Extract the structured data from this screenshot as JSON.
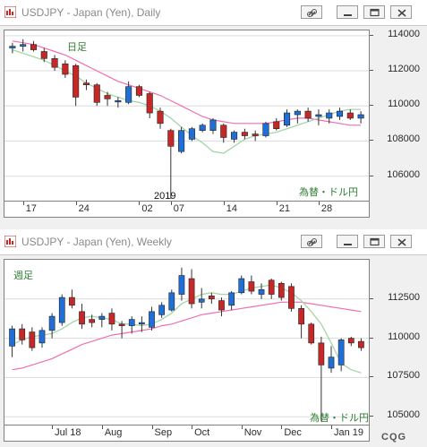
{
  "daily_window": {
    "title": "USDJPY - Japan (Yen), Daily",
    "period_label": "日足",
    "source_label": "為替・ドル円",
    "year_marker": "2019",
    "buttons": [
      "link-icon",
      "minimize-icon",
      "restore-icon",
      "close-icon"
    ]
  },
  "weekly_window": {
    "title": "USDJPY - Japan (Yen), Weekly",
    "period_label": "週足",
    "source_label": "為替・ドル円",
    "buttons": [
      "link-icon",
      "minimize-icon",
      "restore-icon",
      "close-icon"
    ]
  },
  "footer": {
    "brand": "CQG"
  },
  "colors": {
    "up": "#1f6fd6",
    "down": "#c62828",
    "ma_short": "#a5d6a7",
    "ma_long": "#f06fb0",
    "period_text": "#2e7d32"
  },
  "chart_data": [
    {
      "type": "candlestick",
      "title": "USDJPY - Japan (Yen), Daily",
      "y_ticks": [
        "114000",
        "112000",
        "110000",
        "108000",
        "106000"
      ],
      "ylim": [
        104600,
        114300
      ],
      "x_labels": [
        "17",
        "24",
        "02",
        "07",
        "14",
        "21",
        "28"
      ],
      "x_label_index": [
        1,
        6,
        12,
        15,
        20,
        25,
        29
      ],
      "candles": [
        {
          "o": 113300,
          "h": 113600,
          "l": 113000,
          "c": 113400
        },
        {
          "o": 113400,
          "h": 113800,
          "l": 113100,
          "c": 113500
        },
        {
          "o": 113500,
          "h": 113700,
          "l": 113100,
          "c": 113200
        },
        {
          "o": 113100,
          "h": 113300,
          "l": 112500,
          "c": 112700
        },
        {
          "o": 112700,
          "h": 112900,
          "l": 112000,
          "c": 112200
        },
        {
          "o": 112400,
          "h": 112600,
          "l": 111600,
          "c": 111800
        },
        {
          "o": 112300,
          "h": 112400,
          "l": 110000,
          "c": 110500
        },
        {
          "o": 111300,
          "h": 111500,
          "l": 110900,
          "c": 111200
        },
        {
          "o": 111200,
          "h": 111300,
          "l": 110000,
          "c": 110200
        },
        {
          "o": 110600,
          "h": 110800,
          "l": 110000,
          "c": 110400
        },
        {
          "o": 110300,
          "h": 110500,
          "l": 109900,
          "c": 110300
        },
        {
          "o": 110200,
          "h": 111400,
          "l": 110100,
          "c": 111100
        },
        {
          "o": 111100,
          "h": 111200,
          "l": 110500,
          "c": 110600
        },
        {
          "o": 110700,
          "h": 110800,
          "l": 109300,
          "c": 109600
        },
        {
          "o": 109700,
          "h": 109900,
          "l": 108700,
          "c": 109000
        },
        {
          "o": 108600,
          "h": 108700,
          "l": 104700,
          "c": 107700
        },
        {
          "o": 107400,
          "h": 108800,
          "l": 107300,
          "c": 108600
        },
        {
          "o": 108100,
          "h": 108800,
          "l": 108000,
          "c": 108700
        },
        {
          "o": 108600,
          "h": 109000,
          "l": 108500,
          "c": 108900
        },
        {
          "o": 108600,
          "h": 109300,
          "l": 108400,
          "c": 109200
        },
        {
          "o": 108900,
          "h": 109000,
          "l": 107900,
          "c": 108200
        },
        {
          "o": 108100,
          "h": 108600,
          "l": 107900,
          "c": 108500
        },
        {
          "o": 108500,
          "h": 108700,
          "l": 108100,
          "c": 108300
        },
        {
          "o": 108400,
          "h": 108600,
          "l": 108000,
          "c": 108300
        },
        {
          "o": 108300,
          "h": 109100,
          "l": 108200,
          "c": 109000
        },
        {
          "o": 109100,
          "h": 109300,
          "l": 108600,
          "c": 108700
        },
        {
          "o": 108900,
          "h": 109800,
          "l": 108800,
          "c": 109600
        },
        {
          "o": 109500,
          "h": 109800,
          "l": 109000,
          "c": 109700
        },
        {
          "o": 109700,
          "h": 109900,
          "l": 109100,
          "c": 109300
        },
        {
          "o": 109400,
          "h": 109800,
          "l": 108900,
          "c": 109500
        },
        {
          "o": 109300,
          "h": 109800,
          "l": 109000,
          "c": 109600
        },
        {
          "o": 109400,
          "h": 109900,
          "l": 109200,
          "c": 109700
        },
        {
          "o": 109600,
          "h": 109800,
          "l": 109200,
          "c": 109300
        },
        {
          "o": 109300,
          "h": 109700,
          "l": 109000,
          "c": 109500
        }
      ],
      "ma_short": [
        113200,
        113000,
        112800,
        112600,
        112300,
        112000,
        111700,
        111300,
        111000,
        110700,
        110500,
        110300,
        110200,
        110000,
        109700,
        109300,
        108800,
        108300,
        107900,
        107400,
        107300,
        107700,
        108100,
        108300,
        108400,
        108500,
        108700,
        108900,
        109100,
        109300,
        109500,
        109700,
        109800,
        109800
      ],
      "ma_long": [
        113700,
        113600,
        113500,
        113300,
        113100,
        112900,
        112600,
        112300,
        112000,
        111700,
        111400,
        111200,
        111000,
        110800,
        110600,
        110300,
        110000,
        109700,
        109400,
        109200,
        109100,
        109000,
        109000,
        109000,
        109000,
        109100,
        109200,
        109300,
        109300,
        109200,
        109100,
        109000,
        108900,
        108900
      ]
    },
    {
      "type": "candlestick",
      "title": "USDJPY - Japan (Yen), Weekly",
      "y_ticks": [
        "112500",
        "110000",
        "107500",
        "105000"
      ],
      "ylim": [
        104500,
        115000
      ],
      "x_labels": [
        "Jul 18",
        "Aug",
        "Sep",
        "Oct",
        "Nov",
        "Dec",
        "Jan 19"
      ],
      "x_label_index": [
        4,
        9,
        14,
        18,
        23,
        27,
        32
      ],
      "candles": [
        {
          "o": 109500,
          "h": 110800,
          "l": 108800,
          "c": 110600
        },
        {
          "o": 110600,
          "h": 110900,
          "l": 109600,
          "c": 109900
        },
        {
          "o": 110400,
          "h": 110700,
          "l": 109200,
          "c": 109400
        },
        {
          "o": 109700,
          "h": 110700,
          "l": 109400,
          "c": 110500
        },
        {
          "o": 110500,
          "h": 111600,
          "l": 110000,
          "c": 111400
        },
        {
          "o": 111000,
          "h": 112800,
          "l": 110800,
          "c": 112600
        },
        {
          "o": 112600,
          "h": 113100,
          "l": 111900,
          "c": 112100
        },
        {
          "o": 111700,
          "h": 112200,
          "l": 110600,
          "c": 110900
        },
        {
          "o": 111200,
          "h": 111500,
          "l": 110700,
          "c": 111000
        },
        {
          "o": 111200,
          "h": 111600,
          "l": 110700,
          "c": 111400
        },
        {
          "o": 111600,
          "h": 111900,
          "l": 110500,
          "c": 110900
        },
        {
          "o": 110900,
          "h": 111100,
          "l": 110000,
          "c": 110800
        },
        {
          "o": 110800,
          "h": 111400,
          "l": 110300,
          "c": 111200
        },
        {
          "o": 110900,
          "h": 111400,
          "l": 110400,
          "c": 111000
        },
        {
          "o": 110700,
          "h": 112000,
          "l": 110500,
          "c": 111700
        },
        {
          "o": 111500,
          "h": 112300,
          "l": 111300,
          "c": 112100
        },
        {
          "o": 111800,
          "h": 113100,
          "l": 111700,
          "c": 112900
        },
        {
          "o": 112800,
          "h": 114500,
          "l": 112400,
          "c": 114000
        },
        {
          "o": 113800,
          "h": 114400,
          "l": 111900,
          "c": 112200
        },
        {
          "o": 112300,
          "h": 113200,
          "l": 111900,
          "c": 112500
        },
        {
          "o": 112700,
          "h": 112900,
          "l": 112200,
          "c": 112500
        },
        {
          "o": 112400,
          "h": 112600,
          "l": 111400,
          "c": 111800
        },
        {
          "o": 112100,
          "h": 113000,
          "l": 111800,
          "c": 112900
        },
        {
          "o": 112900,
          "h": 114000,
          "l": 112800,
          "c": 113800
        },
        {
          "o": 113600,
          "h": 114000,
          "l": 112800,
          "c": 113000
        },
        {
          "o": 112800,
          "h": 113500,
          "l": 112500,
          "c": 113100
        },
        {
          "o": 113700,
          "h": 113800,
          "l": 112500,
          "c": 112800
        },
        {
          "o": 113500,
          "h": 113600,
          "l": 112400,
          "c": 112600
        },
        {
          "o": 113300,
          "h": 113500,
          "l": 111700,
          "c": 111900
        },
        {
          "o": 111900,
          "h": 112100,
          "l": 110000,
          "c": 110900
        },
        {
          "o": 110900,
          "h": 111000,
          "l": 109600,
          "c": 109700
        },
        {
          "o": 109700,
          "h": 110100,
          "l": 104700,
          "c": 108300
        },
        {
          "o": 108100,
          "h": 109500,
          "l": 107800,
          "c": 108800
        },
        {
          "o": 108300,
          "h": 110000,
          "l": 107900,
          "c": 109900
        },
        {
          "o": 110000,
          "h": 110100,
          "l": 109500,
          "c": 109700
        },
        {
          "o": 109800,
          "h": 110000,
          "l": 109200,
          "c": 109400
        }
      ],
      "ma_short": [
        109600,
        109900,
        110100,
        110200,
        110300,
        110600,
        111000,
        111300,
        111400,
        111300,
        111200,
        110900,
        110900,
        110800,
        110900,
        111200,
        111600,
        112200,
        112500,
        112800,
        112900,
        112800,
        112800,
        113000,
        113200,
        113300,
        113400,
        113200,
        112900,
        112400,
        111700,
        110900,
        109700,
        108400,
        108000,
        107800
      ],
      "ma_long": [
        108000,
        108100,
        108300,
        108500,
        108700,
        109000,
        109300,
        109600,
        109800,
        110000,
        110200,
        110300,
        110400,
        110500,
        110600,
        110800,
        110900,
        111100,
        111300,
        111500,
        111600,
        111700,
        111800,
        111900,
        112000,
        112100,
        112200,
        112300,
        112300,
        112300,
        112200,
        112100,
        112000,
        111900,
        111800,
        111700
      ]
    }
  ]
}
